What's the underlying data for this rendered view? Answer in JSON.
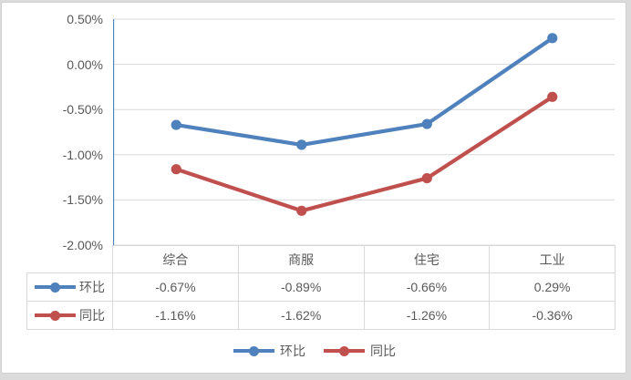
{
  "colors": {
    "page_background": "#dbdbdb",
    "chart_background": "#ffffff",
    "frame_border": "#d2d2d2",
    "gridline": "#d9d9d9",
    "axis_line": "#4f81bd",
    "table_border": "#d9d9d9",
    "text": "#595959",
    "series_blue": "#4f81bd",
    "series_red": "#c0504d"
  },
  "chart_data": {
    "type": "line",
    "title": "",
    "xlabel": "",
    "ylabel": "",
    "categories": [
      "综合",
      "商服",
      "住宅",
      "工业"
    ],
    "series": [
      {
        "name": "环比",
        "color": "#4f81bd",
        "values": [
          -0.67,
          -0.89,
          -0.66,
          0.29
        ],
        "labels": [
          "-0.67%",
          "-0.89%",
          "-0.66%",
          "0.29%"
        ]
      },
      {
        "name": "同比",
        "color": "#c0504d",
        "values": [
          -1.16,
          -1.62,
          -1.26,
          -0.36
        ],
        "labels": [
          "-1.16%",
          "-1.62%",
          "-1.26%",
          "-0.36%"
        ]
      }
    ],
    "y_axis": {
      "min": -2.0,
      "max": 0.5,
      "tick_step": 0.5,
      "tick_labels": [
        "0.50%",
        "0.00%",
        "-0.50%",
        "-1.00%",
        "-1.50%",
        "-2.00%"
      ]
    },
    "grid": true,
    "legend_position": "bottom",
    "data_table_shown": true,
    "marker": "circle"
  }
}
